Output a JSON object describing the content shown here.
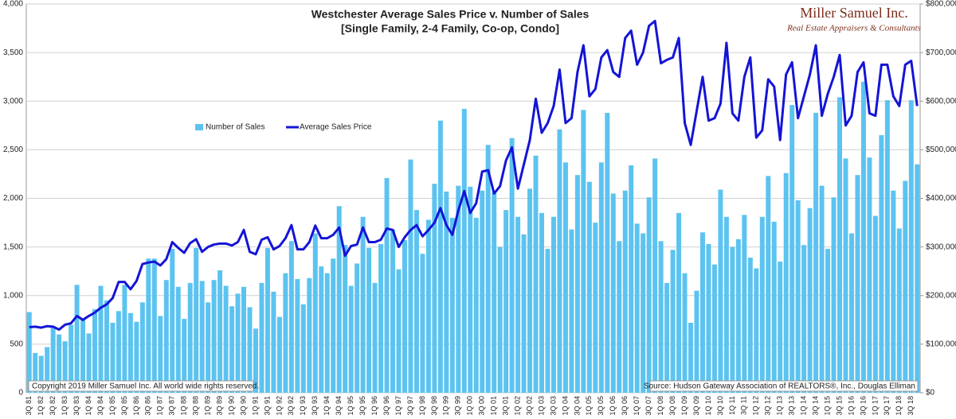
{
  "chart_data": {
    "type": "combo",
    "title": "Westchester Average Sales Price v. Number of Sales",
    "subtitle": "[Single Family, 2-4 Family, Co-op, Condo]",
    "brand": "Miller Samuel Inc.",
    "brand_tagline": "Real Estate Appraisers & Consultants",
    "copyright": "Copyright 2019 Miller Samuel Inc.  All world wide rights reserved.",
    "source": "Source: Hudson Gateway Association of REALTORS®, Inc., Douglas Elliman",
    "grid": true,
    "legend": true,
    "categories": [
      "3Q 81",
      null,
      "1Q 82",
      null,
      "3Q 82",
      null,
      "1Q 83",
      null,
      "3Q 83",
      null,
      "1Q 84",
      null,
      "3Q 84",
      null,
      "1Q 85",
      null,
      "3Q 85",
      null,
      "1Q 86",
      null,
      "3Q 86",
      null,
      "1Q 87",
      null,
      "3Q 87",
      null,
      "1Q 88",
      null,
      "3Q 88",
      null,
      "1Q 89",
      null,
      "3Q 89",
      null,
      "1Q 90",
      null,
      "3Q 90",
      null,
      "1Q 91",
      null,
      "3Q 91",
      null,
      "1Q 92",
      null,
      "3Q 92",
      null,
      "1Q 93",
      null,
      "3Q 93",
      null,
      "1Q 94",
      null,
      "3Q 94",
      null,
      "1Q 95",
      null,
      "3Q 95",
      null,
      "1Q 96",
      null,
      "3Q 96",
      null,
      "1Q 97",
      null,
      "3Q 97",
      null,
      "1Q 98",
      null,
      "3Q 98",
      null,
      "1Q 99",
      null,
      "3Q 99",
      null,
      "1Q 00",
      null,
      "3Q 00",
      null,
      "1Q 01",
      null,
      "3Q 01",
      null,
      "1Q 02",
      null,
      "3Q 02",
      null,
      "1Q 03",
      null,
      "3Q 03",
      null,
      "1Q 04",
      null,
      "3Q 04",
      null,
      "1Q 05",
      null,
      "3Q 05",
      null,
      "1Q 06",
      null,
      "3Q 06",
      null,
      "1Q 07",
      null,
      "3Q 07",
      null,
      "1Q 08",
      null,
      "3Q 08",
      null,
      "1Q 09",
      null,
      "3Q 09",
      null,
      "1Q 10",
      null,
      "3Q 10",
      null,
      "1Q 11",
      null,
      "3Q 11",
      null,
      "1Q 12",
      null,
      "3Q 12",
      null,
      "1Q 13",
      null,
      "3Q 13",
      null,
      "1Q 14",
      null,
      "3Q 14",
      null,
      "1Q 15",
      null,
      "3Q 15",
      null,
      "1Q 16",
      null,
      "3Q 16",
      null,
      "1Q 17",
      null,
      "3Q 17",
      null,
      "1Q 18",
      null,
      "3Q 18",
      null
    ],
    "series": [
      {
        "name": "Number of Sales",
        "type": "bar",
        "color": "#5cc3f0",
        "values": [
          830,
          410,
          380,
          470,
          680,
          600,
          530,
          700,
          1110,
          760,
          610,
          860,
          1100,
          950,
          720,
          840,
          1110,
          820,
          730,
          930,
          1380,
          1380,
          790,
          1160,
          1480,
          1090,
          760,
          1130,
          1490,
          1150,
          930,
          1160,
          1260,
          1100,
          890,
          1020,
          1090,
          880,
          660,
          1130,
          1490,
          1040,
          780,
          1230,
          1560,
          1170,
          910,
          1180,
          1640,
          1300,
          1230,
          1380,
          1920,
          1520,
          1100,
          1330,
          1810,
          1490,
          1130,
          1530,
          2210,
          1680,
          1270,
          1570,
          2400,
          1880,
          1430,
          1780,
          2150,
          2800,
          2070,
          1800,
          2130,
          2920,
          2120,
          1800,
          2080,
          2550,
          2060,
          1500,
          1880,
          2620,
          1810,
          1630,
          2100,
          2440,
          1850,
          1480,
          1810,
          2710,
          2370,
          1680,
          2240,
          2910,
          2170,
          1750,
          2370,
          2880,
          2050,
          1560,
          2080,
          2340,
          1740,
          1640,
          2010,
          2410,
          1560,
          1130,
          1470,
          1850,
          1230,
          720,
          1050,
          1650,
          1530,
          1320,
          2090,
          1810,
          1500,
          1580,
          1830,
          1390,
          1280,
          1810,
          2230,
          1760,
          1350,
          2260,
          2960,
          1980,
          1520,
          1900,
          2880,
          2130,
          1480,
          2010,
          3040,
          2410,
          1640,
          2240,
          3200,
          2420,
          1820,
          2650,
          3010,
          2080,
          1690,
          2180,
          3010,
          2350
        ]
      },
      {
        "name": "Average Sales Price",
        "type": "line",
        "axis": "y2",
        "color": "#1414d6",
        "values": [
          135000,
          136000,
          134000,
          137000,
          136000,
          130000,
          140000,
          143000,
          158000,
          150000,
          158000,
          165000,
          175000,
          182000,
          195000,
          228000,
          228000,
          213000,
          230000,
          265000,
          268000,
          270000,
          262000,
          275000,
          310000,
          298000,
          288000,
          308000,
          316000,
          290000,
          300000,
          305000,
          307000,
          307000,
          303000,
          310000,
          335000,
          290000,
          285000,
          315000,
          320000,
          295000,
          302000,
          318000,
          345000,
          295000,
          295000,
          310000,
          344000,
          318000,
          318000,
          325000,
          340000,
          282000,
          302000,
          305000,
          340000,
          310000,
          310000,
          315000,
          338000,
          335000,
          300000,
          320000,
          335000,
          345000,
          322000,
          335000,
          350000,
          380000,
          345000,
          325000,
          375000,
          415000,
          370000,
          390000,
          455000,
          458000,
          410000,
          425000,
          478000,
          505000,
          420000,
          470000,
          520000,
          605000,
          535000,
          555000,
          590000,
          665000,
          555000,
          565000,
          660000,
          715000,
          610000,
          625000,
          690000,
          705000,
          660000,
          650000,
          730000,
          745000,
          675000,
          700000,
          755000,
          765000,
          678000,
          685000,
          690000,
          730000,
          555000,
          510000,
          580000,
          650000,
          560000,
          565000,
          595000,
          720000,
          575000,
          560000,
          650000,
          690000,
          525000,
          540000,
          645000,
          630000,
          520000,
          655000,
          680000,
          565000,
          610000,
          655000,
          715000,
          570000,
          615000,
          650000,
          695000,
          550000,
          570000,
          660000,
          680000,
          575000,
          570000,
          675000,
          675000,
          610000,
          590000,
          675000,
          683000,
          590000
        ]
      }
    ],
    "ylim": [
      0,
      4000
    ],
    "yticks": [
      0,
      500,
      {
        "value": 1000,
        "label": "1,000"
      },
      {
        "value": 1500,
        "label": "1,500"
      },
      {
        "value": 2000,
        "label": "2,000"
      },
      {
        "value": 2500,
        "label": "2,500"
      },
      {
        "value": 3000,
        "label": "3,000"
      },
      {
        "value": 3500,
        "label": "3,500"
      },
      {
        "value": 4000,
        "label": "4,000"
      }
    ],
    "y2lim": [
      0,
      800000
    ],
    "y2ticks": [
      {
        "value": 0,
        "label": "$0"
      },
      {
        "value": 100000,
        "label": "$100,000"
      },
      {
        "value": 200000,
        "label": "$200,000"
      },
      {
        "value": 300000,
        "label": "$300,000"
      },
      {
        "value": 400000,
        "label": "$400,000"
      },
      {
        "value": 500000,
        "label": "$500,000"
      },
      {
        "value": 600000,
        "label": "$600,000"
      },
      {
        "value": 700000,
        "label": "$700,000"
      },
      {
        "value": 800000,
        "label": "$800,000"
      }
    ]
  }
}
